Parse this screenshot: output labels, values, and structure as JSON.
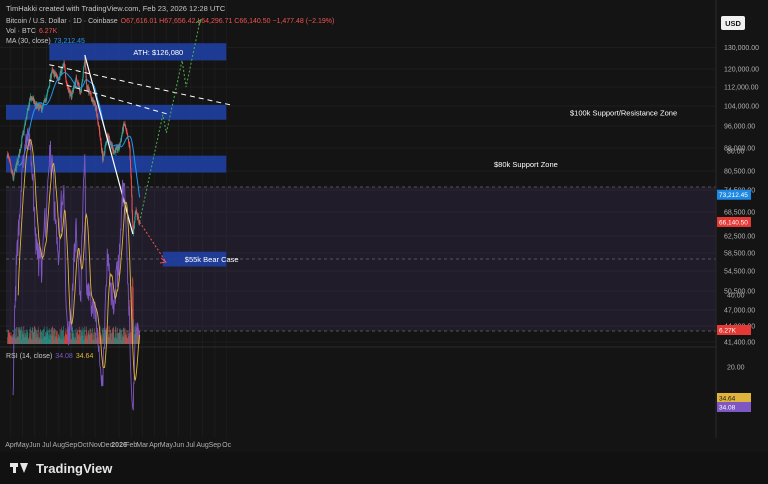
{
  "header": {
    "credit": "TimHakki created with TradingView.com, Feb 23, 2026 12:28 UTC",
    "symbol": "Bitcoin / U.S. Dollar · 1D · Coinbase",
    "ohlc": "O67,616.01 H67,656.42 L64,296.71 C66,140.50 −1,477.48 (−2.19%)",
    "vol_label": "Vol · BTC",
    "vol_value": "6.27K",
    "ma_label": "MA (30, close)",
    "ma_value": "73,212.45",
    "currency": "USD"
  },
  "colors": {
    "up": "#26a69a",
    "down": "#ef5350",
    "ma": "#2196f3",
    "zone": "#1f3fa0",
    "zone_text": "#ffffff",
    "rsi": "#7e57c2",
    "rsi_ma": "#e0b43c",
    "projection_up": "#4caf50",
    "projection_down": "#ef5350",
    "trendline": "#ffffff",
    "label_green": "#26a69a",
    "label_red": "#e53935",
    "label_rsi_yellow": "#e0b43c",
    "label_rsi_purple": "#7e57c2"
  },
  "chart_data": {
    "type": "candlestick",
    "x_ticks": [
      "Apr",
      "May",
      "Jun",
      "Jul",
      "Aug",
      "Sep",
      "Oct",
      "Nov",
      "Dec",
      "2026",
      "Feb",
      "Mar",
      "Apr",
      "May",
      "Jun",
      "Jul",
      "Aug",
      "Sep",
      "Oc"
    ],
    "y_ticks": [
      "130,000.00",
      "120,000.00",
      "112,000.00",
      "104,000.00",
      "96,000.00",
      "88,000.00",
      "80,500.00",
      "74,500.00",
      "68,500.00",
      "62,500.00",
      "58,500.00",
      "54,500.00",
      "50,500.00",
      "47,000.00",
      "44,200.00",
      "41,400.00"
    ],
    "y_tick_values": [
      130000,
      120000,
      112000,
      104000,
      96000,
      88000,
      80500,
      74500,
      68500,
      62500,
      58500,
      54500,
      50500,
      47000,
      44200,
      41400
    ],
    "price_series_knots": [
      [
        "2025-03-24",
        86000
      ],
      [
        "2025-04-07",
        78000
      ],
      [
        "2025-04-21",
        85000
      ],
      [
        "2025-05-05",
        95000
      ],
      [
        "2025-05-22",
        108000
      ],
      [
        "2025-06-05",
        104000
      ],
      [
        "2025-06-20",
        103000
      ],
      [
        "2025-07-03",
        109000
      ],
      [
        "2025-07-14",
        119000
      ],
      [
        "2025-07-31",
        116000
      ],
      [
        "2025-08-14",
        122000
      ],
      [
        "2025-08-22",
        113000
      ],
      [
        "2025-09-01",
        108000
      ],
      [
        "2025-09-15",
        116000
      ],
      [
        "2025-09-26",
        109000
      ],
      [
        "2025-10-06",
        126080
      ],
      [
        "2025-10-10",
        113000
      ],
      [
        "2025-10-21",
        108000
      ],
      [
        "2025-11-04",
        103000
      ],
      [
        "2025-11-21",
        84000
      ],
      [
        "2025-12-03",
        93000
      ],
      [
        "2025-12-17",
        87000
      ],
      [
        "2026-01-01",
        88000
      ],
      [
        "2026-01-14",
        97000
      ],
      [
        "2026-01-28",
        88000
      ],
      [
        "2026-02-05",
        62800
      ],
      [
        "2026-02-12",
        68500
      ],
      [
        "2026-02-22",
        66140
      ]
    ],
    "ma_label": "MA (30, close)",
    "ma_last": 73212.45,
    "last_close": 66140.5,
    "rsi": {
      "label": "RSI (14, close)",
      "value": 34.08,
      "ma_value": 34.64,
      "y_ticks": [
        "80.00",
        "60.00",
        "40.00",
        "20.00"
      ],
      "y_tick_values": [
        80,
        60,
        40,
        20
      ],
      "band": [
        30,
        70
      ]
    },
    "zones": [
      {
        "label": "ATH: $126,080",
        "low": 124000,
        "high": 132000,
        "start": "2025-07-08",
        "end": "2026-09-30"
      },
      {
        "label": "$100k Support/Resistance Zone",
        "low": 98500,
        "high": 104500,
        "start": "2025-03-20",
        "end": "2026-09-30"
      },
      {
        "label": "$80k Support Zone",
        "low": 80000,
        "high": 85500,
        "start": "2025-03-20",
        "end": "2026-09-30"
      },
      {
        "label": "$55k Bear Case",
        "low": 55500,
        "high": 58800,
        "start": "2026-04-22",
        "end": "2026-09-30"
      }
    ],
    "trendlines": [
      {
        "name": "upper-trendline",
        "from": [
          "2025-07-08",
          122000
        ],
        "to": [
          "2026-10-10",
          104500
        ]
      },
      {
        "name": "lower-trendline",
        "from": [
          "2025-07-08",
          115000
        ],
        "to": [
          "2026-05-10",
          100500
        ]
      },
      {
        "name": "crash-line",
        "from": [
          "2025-10-06",
          126500
        ],
        "to": [
          "2026-02-05",
          63000
        ]
      }
    ],
    "projections": {
      "bull": [
        [
          "2026-02-22",
          66000
        ],
        [
          "2026-04-22",
          100500
        ],
        [
          "2026-05-01",
          93500
        ],
        [
          "2026-06-10",
          124000
        ],
        [
          "2026-06-20",
          112000
        ],
        [
          "2026-07-25",
          142000
        ]
      ],
      "bear": [
        [
          "2026-02-22",
          66000
        ],
        [
          "2026-04-30",
          56500
        ]
      ]
    }
  }
}
